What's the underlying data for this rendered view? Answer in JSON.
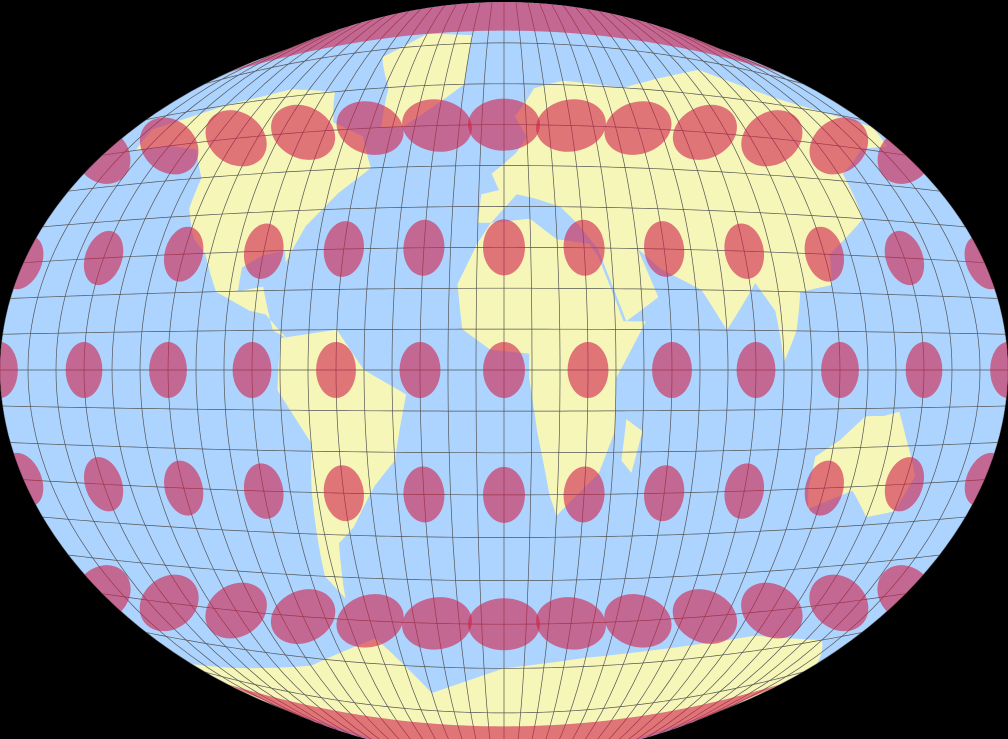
{
  "colors": {
    "background": "#000000",
    "ocean": "#acd4ff",
    "land": "#f6f6b8",
    "graticule": "#555555",
    "indicatrix": "#d0204a",
    "indicatrix_opacity": 0.6
  },
  "graticule": {
    "meridian_step_deg": 10,
    "parallel_step_deg": 10
  },
  "indicatrices": {
    "latitudes": [
      -60,
      -30,
      0,
      30,
      60
    ],
    "longitude_step_deg": 30,
    "polar_bands": true
  },
  "icons": {
    "map": "world-map-tissot"
  }
}
